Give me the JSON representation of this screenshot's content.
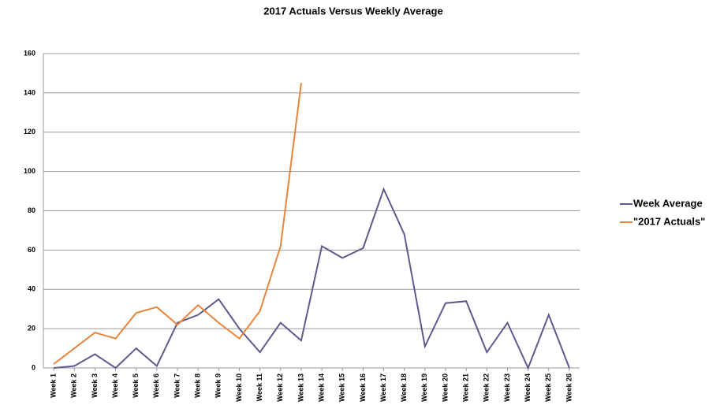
{
  "chart_data": {
    "type": "line",
    "title": "2017 Actuals Versus Weekly Average",
    "categories": [
      "Week 1",
      "Week 2",
      "Week 3",
      "Week 4",
      "Week 5",
      "Week 6",
      "Week 7",
      "Week 8",
      "Week 9",
      "Week 10",
      "Week 11",
      "Week 12",
      "Week 13",
      "Week 14",
      "Week 15",
      "Week 16",
      "Week 17",
      "Week 18",
      "Week 19",
      "Week 20",
      "Week 21",
      "Week 22",
      "Week 23",
      "Week 24",
      "Week 25",
      "Week 26"
    ],
    "series": [
      {
        "name": "Week Average",
        "color": "#5f5a8e",
        "values": [
          0,
          1,
          7,
          0,
          10,
          1,
          23,
          27,
          35,
          20,
          8,
          23,
          14,
          62,
          56,
          61,
          91,
          68,
          11,
          33,
          34,
          8,
          23,
          0,
          27,
          0
        ]
      },
      {
        "name": "\"2017 Actuals\"",
        "color": "#e8843c",
        "values": [
          2,
          10,
          18,
          15,
          28,
          31,
          22,
          32,
          23,
          15,
          29,
          62,
          145,
          null,
          null,
          null,
          null,
          null,
          null,
          null,
          null,
          null,
          null,
          null,
          null,
          null
        ]
      }
    ],
    "ylim": [
      0,
      160
    ],
    "yticks": [
      0,
      20,
      40,
      60,
      80,
      100,
      120,
      140,
      160
    ],
    "grid": true,
    "legend": "right"
  }
}
